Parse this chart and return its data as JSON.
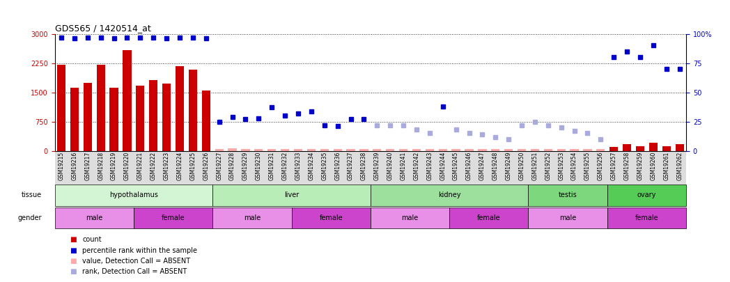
{
  "title": "GDS565 / 1420514_at",
  "samples": [
    "GSM19215",
    "GSM19216",
    "GSM19217",
    "GSM19218",
    "GSM19219",
    "GSM19220",
    "GSM19221",
    "GSM19222",
    "GSM19223",
    "GSM19224",
    "GSM19225",
    "GSM19226",
    "GSM19227",
    "GSM19228",
    "GSM19229",
    "GSM19230",
    "GSM19231",
    "GSM19232",
    "GSM19233",
    "GSM19234",
    "GSM19235",
    "GSM19236",
    "GSM19237",
    "GSM19238",
    "GSM19239",
    "GSM19240",
    "GSM19241",
    "GSM19242",
    "GSM19243",
    "GSM19244",
    "GSM19245",
    "GSM19246",
    "GSM19247",
    "GSM19248",
    "GSM19249",
    "GSM19250",
    "GSM19251",
    "GSM19252",
    "GSM19253",
    "GSM19254",
    "GSM19255",
    "GSM19256",
    "GSM19257",
    "GSM19258",
    "GSM19259",
    "GSM19260",
    "GSM19261",
    "GSM19262"
  ],
  "count_values": [
    2200,
    1620,
    1750,
    2200,
    1620,
    2580,
    1680,
    1820,
    1720,
    2180,
    2080,
    1550,
    50,
    60,
    45,
    45,
    45,
    45,
    45,
    45,
    45,
    45,
    45,
    45,
    45,
    45,
    45,
    45,
    45,
    45,
    45,
    45,
    45,
    45,
    45,
    45,
    45,
    45,
    45,
    45,
    45,
    45,
    110,
    165,
    120,
    200,
    120,
    165
  ],
  "count_absent": [
    false,
    false,
    false,
    false,
    false,
    false,
    false,
    false,
    false,
    false,
    false,
    false,
    true,
    true,
    true,
    true,
    true,
    true,
    true,
    true,
    true,
    true,
    true,
    true,
    true,
    true,
    true,
    true,
    true,
    true,
    true,
    true,
    true,
    true,
    true,
    true,
    true,
    true,
    true,
    true,
    true,
    true,
    false,
    false,
    false,
    false,
    false,
    false
  ],
  "percentile_values": [
    97,
    96,
    97,
    97,
    96,
    97,
    97,
    97,
    96,
    97,
    97,
    96,
    25,
    29,
    27,
    28,
    37,
    30,
    32,
    34,
    22,
    21,
    27,
    27,
    22,
    22,
    22,
    18,
    15,
    38,
    18,
    15,
    14,
    12,
    10,
    22,
    25,
    22,
    20,
    17,
    15,
    10,
    80,
    85,
    80,
    90,
    70,
    70
  ],
  "percentile_absent": [
    false,
    false,
    false,
    false,
    false,
    false,
    false,
    false,
    false,
    false,
    false,
    false,
    false,
    false,
    false,
    false,
    false,
    false,
    false,
    false,
    false,
    false,
    false,
    false,
    true,
    true,
    true,
    true,
    true,
    false,
    true,
    true,
    true,
    true,
    true,
    true,
    true,
    true,
    true,
    true,
    true,
    true,
    false,
    false,
    false,
    false,
    false,
    false
  ],
  "tissue_groups": [
    {
      "label": "hypothalamus",
      "start": 0,
      "end": 11
    },
    {
      "label": "liver",
      "start": 12,
      "end": 23
    },
    {
      "label": "kidney",
      "start": 24,
      "end": 35
    },
    {
      "label": "testis",
      "start": 36,
      "end": 41
    },
    {
      "label": "ovary",
      "start": 42,
      "end": 47
    }
  ],
  "tissue_colors": {
    "hypothalamus": "#d4f5d4",
    "liver": "#b8edb8",
    "kidney": "#9de09d",
    "testis": "#7dd87d",
    "ovary": "#55cc55"
  },
  "gender_groups": [
    {
      "label": "male",
      "start": 0,
      "end": 5
    },
    {
      "label": "female",
      "start": 6,
      "end": 11
    },
    {
      "label": "male",
      "start": 12,
      "end": 17
    },
    {
      "label": "female",
      "start": 18,
      "end": 23
    },
    {
      "label": "male",
      "start": 24,
      "end": 29
    },
    {
      "label": "female",
      "start": 30,
      "end": 35
    },
    {
      "label": "male",
      "start": 36,
      "end": 41
    },
    {
      "label": "female",
      "start": 42,
      "end": 47
    }
  ],
  "male_color": "#e890e8",
  "female_color": "#cc44cc",
  "y_left_ticks": [
    0,
    750,
    1500,
    2250,
    3000
  ],
  "y_right_ticks": [
    0,
    25,
    50,
    75,
    100
  ],
  "bar_color_present": "#cc0000",
  "bar_color_absent": "#ffaaaa",
  "dot_color_present": "#0000cc",
  "dot_color_absent": "#aaaadd",
  "bg_color": "#ffffff"
}
